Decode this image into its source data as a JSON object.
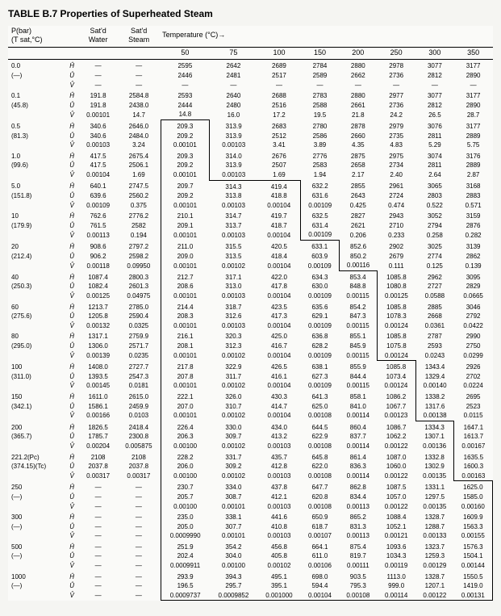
{
  "title": "TABLE B.7  Properties of Superheated Steam",
  "header": {
    "p_label": "P(bar)",
    "tsat_label": "(T sat,°C)",
    "satd_water": "Sat'd\nWater",
    "satd_steam": "Sat'd\nSteam",
    "temp_label": "Temperature (°C)→",
    "temps": [
      "50",
      "75",
      "100",
      "150",
      "200",
      "250",
      "300",
      "350"
    ]
  },
  "props": [
    "Ĥ",
    "Û",
    "V̂"
  ],
  "rows": [
    {
      "p": "0.0",
      "t": "(—)",
      "sw": [
        "—",
        "—",
        "—"
      ],
      "ss": [
        "—",
        "—",
        "—"
      ],
      "v": [
        [
          "2595",
          "2446",
          "—"
        ],
        [
          "2642",
          "2481",
          "—"
        ],
        [
          "2689",
          "2517",
          "—"
        ],
        [
          "2784",
          "2589",
          "—"
        ],
        [
          "2880",
          "2662",
          "—"
        ],
        [
          "2978",
          "2736",
          "—"
        ],
        [
          "3077",
          "2812",
          "—"
        ],
        [
          "3177",
          "2890",
          "—"
        ]
      ],
      "step": -1
    },
    {
      "p": "0.1",
      "t": "(45.8)",
      "sw": [
        "191.8",
        "191.8",
        "0.00101"
      ],
      "ss": [
        "2584.8",
        "2438.0",
        "14.7"
      ],
      "v": [
        [
          "2593",
          "2444",
          "14.8"
        ],
        [
          "2640",
          "2480",
          "16.0"
        ],
        [
          "2688",
          "2516",
          "17.2"
        ],
        [
          "2783",
          "2588",
          "19.5"
        ],
        [
          "2880",
          "2661",
          "21.8"
        ],
        [
          "2977",
          "2736",
          "24.2"
        ],
        [
          "3077",
          "2812",
          "26.5"
        ],
        [
          "3177",
          "2890",
          "28.7"
        ]
      ],
      "step": -1
    },
    {
      "p": "0.5",
      "t": "(81.3)",
      "sw": [
        "340.6",
        "340.6",
        "0.00103"
      ],
      "ss": [
        "2646.0",
        "2484.0",
        "3.24"
      ],
      "v": [
        [
          "209.3",
          "209.2",
          "0.00101"
        ],
        [
          "313.9",
          "313.9",
          "0.00103"
        ],
        [
          "2683",
          "2512",
          "3.41"
        ],
        [
          "2780",
          "2586",
          "3.89"
        ],
        [
          "2878",
          "2660",
          "4.35"
        ],
        [
          "2979",
          "2735",
          "4.83"
        ],
        [
          "3076",
          "2811",
          "5.29"
        ],
        [
          "3177",
          "2889",
          "5.75"
        ]
      ],
      "step": 0
    },
    {
      "p": "1.0",
      "t": "(99.6)",
      "sw": [
        "417.5",
        "417.5",
        "0.00104"
      ],
      "ss": [
        "2675.4",
        "2506.1",
        "1.69"
      ],
      "v": [
        [
          "209.3",
          "209.2",
          "0.00101"
        ],
        [
          "314.0",
          "313.9",
          "0.00103"
        ],
        [
          "2676",
          "2507",
          "1.69"
        ],
        [
          "2776",
          "2583",
          "1.94"
        ],
        [
          "2875",
          "2658",
          "2.17"
        ],
        [
          "2975",
          "2734",
          "2.40"
        ],
        [
          "3074",
          "2811",
          "2.64"
        ],
        [
          "3176",
          "2889",
          "2.87"
        ]
      ],
      "step": 0
    },
    {
      "p": "5.0",
      "t": "(151.8)",
      "sw": [
        "640.1",
        "639.6",
        "0.00109"
      ],
      "ss": [
        "2747.5",
        "2560.2",
        "0.375"
      ],
      "v": [
        [
          "209.7",
          "209.2",
          "0.00101"
        ],
        [
          "314.3",
          "313.8",
          "0.00103"
        ],
        [
          "419.4",
          "418.8",
          "0.00104"
        ],
        [
          "632.2",
          "631.6",
          "0.00109"
        ],
        [
          "2855",
          "2643",
          "0.425"
        ],
        [
          "2961",
          "2724",
          "0.474"
        ],
        [
          "3065",
          "2803",
          "0.522"
        ],
        [
          "3168",
          "2883",
          "0.571"
        ]
      ],
      "step": 2
    },
    {
      "p": "10",
      "t": "(179.9)",
      "sw": [
        "762.6",
        "761.5",
        "0.00113"
      ],
      "ss": [
        "2776.2",
        "2582",
        "0.194"
      ],
      "v": [
        [
          "210.1",
          "209.1",
          "0.00101"
        ],
        [
          "314.7",
          "313.7",
          "0.00103"
        ],
        [
          "419.7",
          "418.7",
          "0.00104"
        ],
        [
          "632.5",
          "631.4",
          "0.00109"
        ],
        [
          "2827",
          "2621",
          "0.206"
        ],
        [
          "2943",
          "2710",
          "0.233"
        ],
        [
          "3052",
          "2794",
          "0.258"
        ],
        [
          "3159",
          "2876",
          "0.282"
        ]
      ],
      "step": 2
    },
    {
      "p": "20",
      "t": "(212.4)",
      "sw": [
        "908.6",
        "906.2",
        "0.00118"
      ],
      "ss": [
        "2797.2",
        "2598.2",
        "0.09950"
      ],
      "v": [
        [
          "211.0",
          "209.0",
          "0.00101"
        ],
        [
          "315.5",
          "313.5",
          "0.00102"
        ],
        [
          "420.5",
          "418.4",
          "0.00104"
        ],
        [
          "633.1",
          "603.9",
          "0.00109"
        ],
        [
          "852.6",
          "850.2",
          "0.00116"
        ],
        [
          "2902",
          "2679",
          "0.111"
        ],
        [
          "3025",
          "2774",
          "0.125"
        ],
        [
          "3139",
          "2862",
          "0.139"
        ]
      ],
      "step": 3
    },
    {
      "p": "40",
      "t": "(250.3)",
      "sw": [
        "1087.4",
        "1082.4",
        "0.00125"
      ],
      "ss": [
        "2800.3",
        "2601.3",
        "0.04975"
      ],
      "v": [
        [
          "212.7",
          "208.6",
          "0.00101"
        ],
        [
          "317.1",
          "313.0",
          "0.00103"
        ],
        [
          "422.0",
          "417.8",
          "0.00104"
        ],
        [
          "634.3",
          "630.0",
          "0.00109"
        ],
        [
          "853.4",
          "848.8",
          "0.00115"
        ],
        [
          "1085.8",
          "1080.8",
          "0.00125"
        ],
        [
          "2962",
          "2727",
          "0.0588"
        ],
        [
          "3095",
          "2829",
          "0.0665"
        ]
      ],
      "step": 4
    },
    {
      "p": "60",
      "t": "(275.6)",
      "sw": [
        "1213.7",
        "1205.8",
        "0.00132"
      ],
      "ss": [
        "2785.0",
        "2590.4",
        "0.0325"
      ],
      "v": [
        [
          "214.4",
          "208.3",
          "0.00101"
        ],
        [
          "318.7",
          "312.6",
          "0.00103"
        ],
        [
          "423.5",
          "417.3",
          "0.00104"
        ],
        [
          "635.6",
          "629.1",
          "0.00109"
        ],
        [
          "854.2",
          "847.3",
          "0.00115"
        ],
        [
          "1085.8",
          "1078.3",
          "0.00124"
        ],
        [
          "2885",
          "2668",
          "0.0361"
        ],
        [
          "3046",
          "2792",
          "0.0422"
        ]
      ],
      "step": 4
    },
    {
      "p": "80",
      "t": "(295.0)",
      "sw": [
        "1317.1",
        "1306.0",
        "0.00139"
      ],
      "ss": [
        "2759.9",
        "2571.7",
        "0.0235"
      ],
      "v": [
        [
          "216.1",
          "208.1",
          "0.00101"
        ],
        [
          "320.3",
          "312.3",
          "0.00102"
        ],
        [
          "425.0",
          "416.7",
          "0.00104"
        ],
        [
          "636.8",
          "628.2",
          "0.00109"
        ],
        [
          "855.1",
          "845.9",
          "0.00115"
        ],
        [
          "1085.8",
          "1075.8",
          "0.00124"
        ],
        [
          "2787",
          "2593",
          "0.0243"
        ],
        [
          "2990",
          "2750",
          "0.0299"
        ]
      ],
      "step": 4
    },
    {
      "p": "100",
      "t": "(311.0)",
      "sw": [
        "1408.0",
        "1393.5",
        "0.00145"
      ],
      "ss": [
        "2727.7",
        "2547.3",
        "0.0181"
      ],
      "v": [
        [
          "217.8",
          "207.8",
          "0.00101"
        ],
        [
          "322.9",
          "311.7",
          "0.00102"
        ],
        [
          "426.5",
          "416.1",
          "0.00104"
        ],
        [
          "638.1",
          "627.3",
          "0.00109"
        ],
        [
          "855.9",
          "844.4",
          "0.00115"
        ],
        [
          "1085.8",
          "1073.4",
          "0.00124"
        ],
        [
          "1343.4",
          "1329.4",
          "0.00140"
        ],
        [
          "2926",
          "2702",
          "0.0224"
        ]
      ],
      "step": 5
    },
    {
      "p": "150",
      "t": "(342.1)",
      "sw": [
        "1611.0",
        "1586.1",
        "0.00166"
      ],
      "ss": [
        "2615.0",
        "2459.9",
        "0.0103"
      ],
      "v": [
        [
          "222.1",
          "207.0",
          "0.00101"
        ],
        [
          "326.0",
          "310.7",
          "0.00102"
        ],
        [
          "430.3",
          "414.7",
          "0.00104"
        ],
        [
          "641.3",
          "625.0",
          "0.00108"
        ],
        [
          "858.1",
          "841.0",
          "0.00114"
        ],
        [
          "1086.2",
          "1067.7",
          "0.00123"
        ],
        [
          "1338.2",
          "1317.6",
          "0.00138"
        ],
        [
          "2695",
          "2523",
          "0.0115"
        ]
      ],
      "step": 5
    },
    {
      "p": "200",
      "t": "(365.7)",
      "sw": [
        "1826.5",
        "1785.7",
        "0.00204"
      ],
      "ss": [
        "2418.4",
        "2300.8",
        "0.005875"
      ],
      "v": [
        [
          "226.4",
          "206.3",
          "0.00100"
        ],
        [
          "330.0",
          "309.7",
          "0.00102"
        ],
        [
          "434.0",
          "413.2",
          "0.00103"
        ],
        [
          "644.5",
          "622.9",
          "0.00108"
        ],
        [
          "860.4",
          "837.7",
          "0.00114"
        ],
        [
          "1086.7",
          "1062.2",
          "0.00122"
        ],
        [
          "1334.3",
          "1307.1",
          "0.00136"
        ],
        [
          "1647.1",
          "1613.7",
          "0.00167"
        ]
      ],
      "step": 6
    },
    {
      "p": "221.2(Pc)",
      "t": "(374.15)(Tc)",
      "sw": [
        "2108",
        "2037.8",
        "0.00317"
      ],
      "ss": [
        "2108",
        "2037.8",
        "0.00317"
      ],
      "v": [
        [
          "228.2",
          "206.0",
          "0.00100"
        ],
        [
          "331.7",
          "309.2",
          "0.00102"
        ],
        [
          "435.7",
          "412.8",
          "0.00103"
        ],
        [
          "645.8",
          "622.0",
          "0.00108"
        ],
        [
          "861.4",
          "836.3",
          "0.00114"
        ],
        [
          "1087.0",
          "1060.0",
          "0.00122"
        ],
        [
          "1332.8",
          "1302.9",
          "0.00135"
        ],
        [
          "1635.5",
          "1600.3",
          "0.00163"
        ]
      ],
      "step": 6
    },
    {
      "p": "250",
      "t": "(—)",
      "sw": [
        "—",
        "—",
        "—"
      ],
      "ss": [
        "—",
        "—",
        "—"
      ],
      "v": [
        [
          "230.7",
          "205.7",
          "0.00100"
        ],
        [
          "334.0",
          "308.7",
          "0.00101"
        ],
        [
          "437.8",
          "412.1",
          "0.00103"
        ],
        [
          "647.7",
          "620.8",
          "0.00108"
        ],
        [
          "862.8",
          "834.4",
          "0.00113"
        ],
        [
          "1087.5",
          "1057.0",
          "0.00122"
        ],
        [
          "1331.1",
          "1297.5",
          "0.00135"
        ],
        [
          "1625.0",
          "1585.0",
          "0.00160"
        ]
      ],
      "step": 7
    },
    {
      "p": "300",
      "t": "(—)",
      "sw": [
        "—",
        "—",
        "—"
      ],
      "ss": [
        "—",
        "—",
        "—"
      ],
      "v": [
        [
          "235.0",
          "205.0",
          "0.0009990"
        ],
        [
          "338.1",
          "307.7",
          "0.00101"
        ],
        [
          "441.6",
          "410.8",
          "0.00103"
        ],
        [
          "650.9",
          "618.7",
          "0.00107"
        ],
        [
          "865.2",
          "831.3",
          "0.00113"
        ],
        [
          "1088.4",
          "1052.1",
          "0.00121"
        ],
        [
          "1328.7",
          "1288.7",
          "0.00133"
        ],
        [
          "1609.9",
          "1563.3",
          "0.00155"
        ]
      ],
      "step": 7
    },
    {
      "p": "500",
      "t": "(—)",
      "sw": [
        "—",
        "—",
        "—"
      ],
      "ss": [
        "—",
        "—",
        "—"
      ],
      "v": [
        [
          "251.9",
          "202.4",
          "0.0009911"
        ],
        [
          "354.2",
          "304.0",
          "0.00100"
        ],
        [
          "456.8",
          "405.8",
          "0.00102"
        ],
        [
          "664.1",
          "611.0",
          "0.00106"
        ],
        [
          "875.4",
          "819.7",
          "0.00111"
        ],
        [
          "1093.6",
          "1034.3",
          "0.00119"
        ],
        [
          "1323.7",
          "1259.3",
          "0.00129"
        ],
        [
          "1576.3",
          "1504.1",
          "0.00144"
        ]
      ],
      "step": 7
    },
    {
      "p": "1000",
      "t": "(—)",
      "sw": [
        "—",
        "—",
        "—"
      ],
      "ss": [
        "—",
        "—",
        "—"
      ],
      "v": [
        [
          "293.9",
          "196.5",
          "0.0009737"
        ],
        [
          "394.3",
          "295.7",
          "0.0009852"
        ],
        [
          "495.1",
          "395.1",
          "0.001000"
        ],
        [
          "698.0",
          "594.4",
          "0.00104"
        ],
        [
          "903.5",
          "795.3",
          "0.00108"
        ],
        [
          "1113.0",
          "999.0",
          "0.00114"
        ],
        [
          "1328.7",
          "1207.1",
          "0.00122"
        ],
        [
          "1550.5",
          "1419.0",
          "0.00131"
        ]
      ],
      "step": 7
    }
  ],
  "colors": {
    "bg": "#f5f5f2",
    "line": "#000000"
  }
}
